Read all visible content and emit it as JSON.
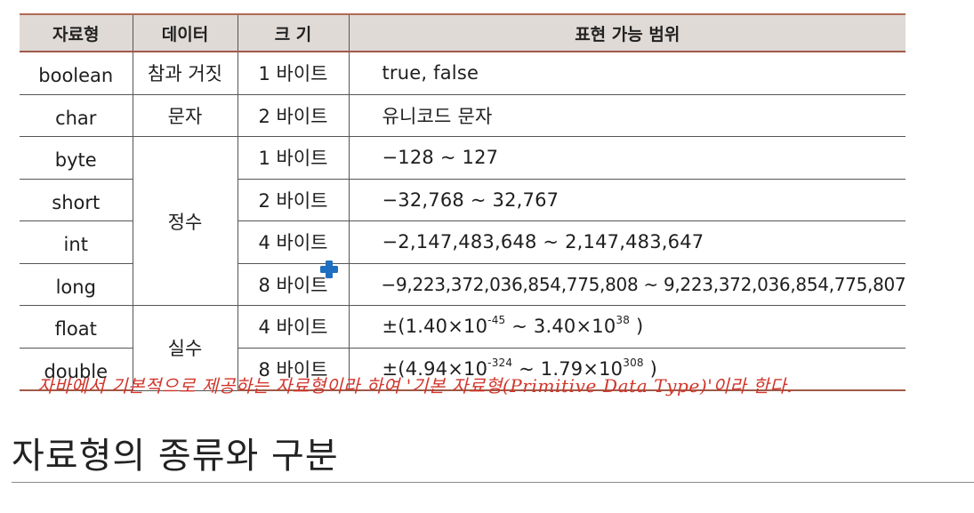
{
  "table": {
    "headers": [
      "자료형",
      "데이터",
      "크 기",
      "표현 가능 범위"
    ],
    "rows": [
      {
        "type": "boolean",
        "size": "1 바이트",
        "range": "true, false"
      },
      {
        "type": "char",
        "size": "2 바이트",
        "range": "유니코드 문자"
      },
      {
        "type": "byte",
        "size": "1 바이트",
        "range": "−128 ~ 127"
      },
      {
        "type": "short",
        "size": "2 바이트",
        "range": "−32,768 ~ 32,767"
      },
      {
        "type": "int",
        "size": "4 바이트",
        "range": "−2,147,483,648 ~ 2,147,483,647"
      },
      {
        "type": "long",
        "size": "8 바이트",
        "range": "−9,223,372,036,854,775,808 ~ 9,223,372,036,854,775,807"
      },
      {
        "type": "float",
        "size": "4 바이트",
        "range_pre": "±(1.40×10",
        "range_exp1": "-45",
        "range_mid": " ~ 3.40×10",
        "range_exp2": "38",
        "range_post": " )"
      },
      {
        "type": "double",
        "size": "8 바이트",
        "range_pre": "±(4.94×10",
        "range_exp1": "-324",
        "range_mid": " ~ 1.79×10",
        "range_exp2": "308",
        "range_post": " )"
      }
    ],
    "data_groups": {
      "boolean": "참과 거짓",
      "char": "문자",
      "integer": "정수",
      "real": "실수"
    }
  },
  "note": "자바에서 기본적으로 제공하는 자료형이라 하여 '기본 자료형(Primitive Data Type)'이라 한다.",
  "heading": "자료형의 종류와 구분",
  "colors": {
    "header_bg": "#dfdad6",
    "header_rule": "#a05a48",
    "note_red": "#d2342a",
    "cursor_blue": "#1f6fc0"
  },
  "icons": {
    "cursor": "move-cursor-icon"
  }
}
